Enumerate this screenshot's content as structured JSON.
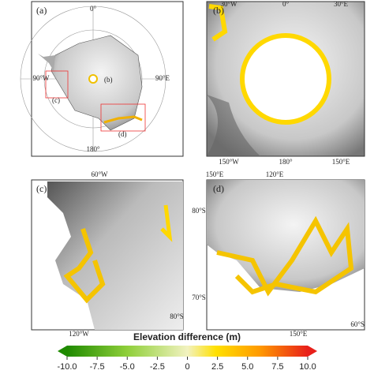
{
  "panels": [
    {
      "label": "(a)",
      "graticule": [
        "0°",
        "90°W",
        "90°E",
        "180°"
      ],
      "boxes": [
        "(b)",
        "(c)",
        "(d)"
      ]
    },
    {
      "label": "(b)",
      "top": [
        "30°W",
        "0°",
        "30°E"
      ],
      "bottom": [
        "150°W",
        "180°",
        "150°E"
      ]
    },
    {
      "label": "(c)",
      "top": [
        "60°W"
      ],
      "bottom": [
        "120°W"
      ],
      "right": [
        "80°S"
      ]
    },
    {
      "label": "(d)",
      "top": [
        "150°E",
        "120°E"
      ],
      "left": [
        "80°S",
        "70°S"
      ],
      "bottom": [
        "150°E"
      ],
      "right": [
        "60°S"
      ]
    }
  ],
  "colorbar": {
    "title": "Elevation difference (m)",
    "lim": [
      -10,
      10
    ],
    "ticks": [
      {
        "value": -10,
        "label": "-10.0"
      },
      -7.5,
      {
        "value": -5,
        "label": "-5.0"
      },
      -2.5,
      0,
      2.5,
      {
        "value": 5,
        "label": "5.0"
      },
      7.5,
      {
        "value": 10,
        "label": "10.0"
      }
    ]
  }
}
